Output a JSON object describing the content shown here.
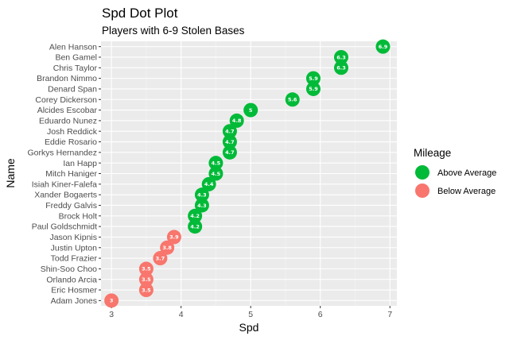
{
  "chart_data": {
    "type": "scatter",
    "title": "Spd Dot Plot",
    "subtitle": "Players with 6-9 Stolen Bases",
    "xlabel": "Spd",
    "ylabel": "Name",
    "xlim": [
      2.85,
      7.1
    ],
    "x_ticks": [
      3,
      4,
      5,
      6,
      7
    ],
    "grid": true,
    "legend": {
      "title": "Mileage",
      "placement": "right",
      "entries": [
        {
          "label": "Above Average",
          "color": "#00BA38"
        },
        {
          "label": "Below Average",
          "color": "#F8766D"
        }
      ]
    },
    "points": [
      {
        "name": "Alen Hanson",
        "spd": 6.9,
        "label": "6.9",
        "group": "Above Average"
      },
      {
        "name": "Ben Gamel",
        "spd": 6.3,
        "label": "6.3",
        "group": "Above Average"
      },
      {
        "name": "Chris Taylor",
        "spd": 6.3,
        "label": "6.3",
        "group": "Above Average"
      },
      {
        "name": "Brandon Nimmo",
        "spd": 5.9,
        "label": "5.9",
        "group": "Above Average"
      },
      {
        "name": "Denard Span",
        "spd": 5.9,
        "label": "5.9",
        "group": "Above Average"
      },
      {
        "name": "Corey Dickerson",
        "spd": 5.6,
        "label": "5.6",
        "group": "Above Average"
      },
      {
        "name": "Alcides Escobar",
        "spd": 5.0,
        "label": "5",
        "group": "Above Average"
      },
      {
        "name": "Eduardo Nunez",
        "spd": 4.8,
        "label": "4.8",
        "group": "Above Average"
      },
      {
        "name": "Josh Reddick",
        "spd": 4.7,
        "label": "4.7",
        "group": "Above Average"
      },
      {
        "name": "Eddie Rosario",
        "spd": 4.7,
        "label": "4.7",
        "group": "Above Average"
      },
      {
        "name": "Gorkys Hernandez",
        "spd": 4.7,
        "label": "4.7",
        "group": "Above Average"
      },
      {
        "name": "Ian Happ",
        "spd": 4.5,
        "label": "4.5",
        "group": "Above Average"
      },
      {
        "name": "Mitch Haniger",
        "spd": 4.5,
        "label": "4.5",
        "group": "Above Average"
      },
      {
        "name": "Isiah Kiner-Falefa",
        "spd": 4.4,
        "label": "4.4",
        "group": "Above Average"
      },
      {
        "name": "Xander Bogaerts",
        "spd": 4.3,
        "label": "4.3",
        "group": "Above Average"
      },
      {
        "name": "Freddy Galvis",
        "spd": 4.3,
        "label": "4.3",
        "group": "Above Average"
      },
      {
        "name": "Brock Holt",
        "spd": 4.2,
        "label": "4.2",
        "group": "Above Average"
      },
      {
        "name": "Paul Goldschmidt",
        "spd": 4.2,
        "label": "4.2",
        "group": "Above Average"
      },
      {
        "name": "Jason Kipnis",
        "spd": 3.9,
        "label": "3.9",
        "group": "Below Average"
      },
      {
        "name": "Justin Upton",
        "spd": 3.8,
        "label": "3.8",
        "group": "Below Average"
      },
      {
        "name": "Todd Frazier",
        "spd": 3.7,
        "label": "3.7",
        "group": "Below Average"
      },
      {
        "name": "Shin-Soo Choo",
        "spd": 3.5,
        "label": "3.5",
        "group": "Below Average"
      },
      {
        "name": "Orlando Arcia",
        "spd": 3.5,
        "label": "3.5",
        "group": "Below Average"
      },
      {
        "name": "Eric Hosmer",
        "spd": 3.5,
        "label": "3.5",
        "group": "Below Average"
      },
      {
        "name": "Adam Jones",
        "spd": 3.0,
        "label": "3",
        "group": "Below Average"
      }
    ]
  }
}
